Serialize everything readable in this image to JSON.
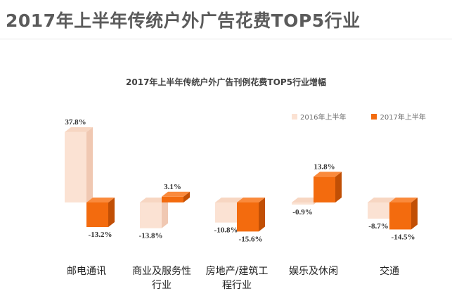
{
  "page": {
    "title": "2017年上半年传统户外广告花费TOP5行业"
  },
  "chart_data": {
    "type": "bar",
    "title": "2017年上半年传统户外广告刊例花费TOP5行业增幅",
    "categories": [
      [
        "邮电通讯"
      ],
      [
        "商业及服务性",
        "行业"
      ],
      [
        "房地产/建筑工",
        "程行业"
      ],
      [
        "娱乐及休闲"
      ],
      [
        "交通"
      ]
    ],
    "series": [
      {
        "name": "2016年上半年",
        "values": [
          37.8,
          -13.8,
          -10.8,
          -0.9,
          -8.7
        ],
        "labels": [
          "37.8%",
          "-13.8%",
          "-10.8%",
          "-0.9%",
          "-8.7%"
        ],
        "color": "#fbe2d3"
      },
      {
        "name": "2017年上半年",
        "values": [
          -13.2,
          3.1,
          -15.6,
          13.8,
          -14.5
        ],
        "labels": [
          "-13.2%",
          "3.1%",
          "-15.6%",
          "13.8%",
          "-14.5%"
        ],
        "color": "#f36b0e"
      }
    ],
    "unit": "%",
    "ylim": [
      -20,
      40
    ],
    "grid": false,
    "legend_position": "top-right",
    "style": "3d-bar"
  }
}
